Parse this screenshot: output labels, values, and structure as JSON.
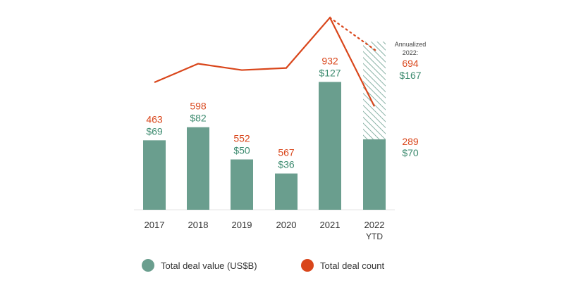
{
  "chart_data": {
    "type": "bar+line",
    "categories": [
      "2017",
      "2018",
      "2019",
      "2020",
      "2021",
      "2022"
    ],
    "category_sublabels": [
      "",
      "",
      "",
      "",
      "",
      "YTD"
    ],
    "series": [
      {
        "name": "Total deal value (US$B)",
        "type": "bar",
        "values": [
          69,
          82,
          50,
          36,
          127,
          70
        ],
        "labels": [
          "$69",
          "$82",
          "$50",
          "$36",
          "$127",
          "$70"
        ],
        "color": "#6a9e8e"
      },
      {
        "name": "Total deal count",
        "type": "line",
        "values": [
          463,
          598,
          552,
          567,
          932,
          289
        ],
        "labels": [
          "463",
          "598",
          "552",
          "567",
          "932",
          "289"
        ],
        "color": "#d9461b"
      }
    ],
    "annualized": {
      "title_line1": "Annualized",
      "title_line2": "2022:",
      "count": 694,
      "count_label": "694",
      "value": 167,
      "value_label": "$167"
    },
    "legend": {
      "placement": "bottom",
      "items": [
        {
          "label": "Total deal value (US$B)",
          "color": "#6a9e8e"
        },
        {
          "label": "Total deal count",
          "color": "#d9461b"
        }
      ]
    },
    "grid": false
  }
}
